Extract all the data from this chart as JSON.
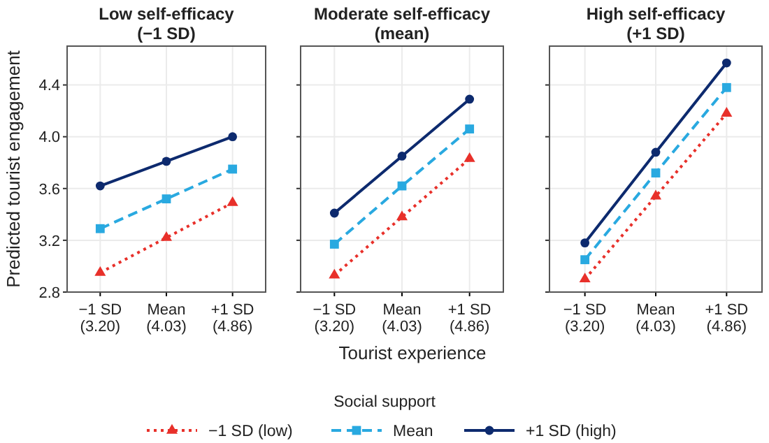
{
  "chart_data": [
    {
      "type": "line",
      "title": "Low self-efficacy\n(−1 SD)",
      "ylabel": "Predicted tourist engagement",
      "categories": [
        "−1 SD\n(3.20)",
        "Mean\n(4.03)",
        "+1 SD\n(4.86)"
      ],
      "ylim": [
        2.8,
        4.7
      ],
      "yticks": [
        2.8,
        3.2,
        3.6,
        {
          "value": 4,
          "label": "4.0"
        },
        4.4
      ],
      "grid": true,
      "series": [
        {
          "color": "#e8302a",
          "marker": "triangle",
          "line_style": "dotted",
          "values": [
            2.95,
            3.22,
            3.49
          ]
        },
        {
          "color": "#29a9e0",
          "marker": "square",
          "line_style": "dashed",
          "values": [
            3.29,
            3.52,
            3.75
          ]
        },
        {
          "color": "#0d2a6e",
          "marker": "circle",
          "line_style": "solid",
          "values": [
            3.62,
            3.81,
            4.0
          ]
        }
      ]
    },
    {
      "type": "line",
      "title": "Moderate self-efficacy\n(mean)",
      "xlabel": "Tourist experience",
      "legend_title": "Social support",
      "legend": "bottom",
      "tick_labels": "x",
      "categories": [
        "−1 SD\n(3.20)",
        "Mean\n(4.03)",
        "+1 SD\n(4.86)"
      ],
      "ylim": [
        2.8,
        4.7
      ],
      "yticks": [
        2.8,
        3.2,
        3.6,
        4,
        4.4
      ],
      "grid": true,
      "series": [
        {
          "name": "−1 SD (low)",
          "color": "#e8302a",
          "marker": "triangle",
          "line_style": "dotted",
          "values": [
            2.93,
            3.38,
            3.83
          ]
        },
        {
          "name": "Mean",
          "color": "#29a9e0",
          "marker": "square",
          "line_style": "dashed",
          "values": [
            3.17,
            3.62,
            4.06
          ]
        },
        {
          "name": "+1 SD (high)",
          "color": "#0d2a6e",
          "marker": "circle",
          "line_style": "solid",
          "values": [
            3.41,
            3.85,
            4.29
          ]
        }
      ]
    },
    {
      "type": "line",
      "title": "High self-efficacy\n(+1 SD)",
      "tick_labels": "x",
      "categories": [
        "−1 SD\n(3.20)",
        "Mean\n(4.03)",
        "+1 SD\n(4.86)"
      ],
      "ylim": [
        2.8,
        4.7
      ],
      "yticks": [
        2.8,
        3.2,
        3.6,
        4,
        4.4
      ],
      "grid": true,
      "series": [
        {
          "color": "#e8302a",
          "marker": "triangle",
          "line_style": "dotted",
          "values": [
            2.9,
            3.54,
            4.18
          ]
        },
        {
          "color": "#29a9e0",
          "marker": "square",
          "line_style": "dashed",
          "values": [
            3.05,
            3.72,
            4.38
          ]
        },
        {
          "color": "#0d2a6e",
          "marker": "circle",
          "line_style": "solid",
          "values": [
            3.18,
            3.88,
            4.57
          ]
        }
      ]
    }
  ]
}
